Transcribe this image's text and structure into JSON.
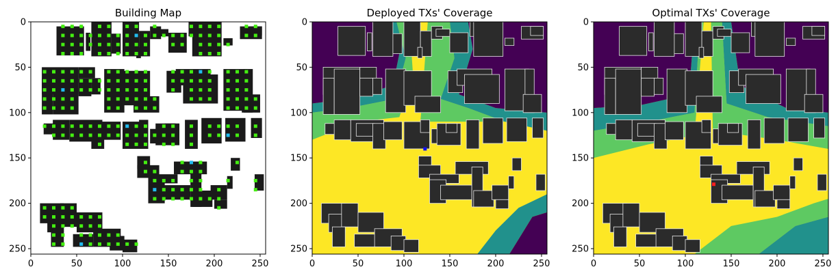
{
  "colors": {
    "viridis_0": "#440154",
    "viridis_1": "#21918c",
    "viridis_2": "#5ec962",
    "viridis_3": "#fde725",
    "building_black": "#1a1a1a",
    "building_gray": "#2b2b2b",
    "building_edge": "#e8e8e8",
    "grid_green": "#44ee11",
    "grid_cyan": "#22bbee",
    "deployed_tx": "#1010ee",
    "optimal_tx": "#ff2020"
  },
  "chart_data": [
    {
      "type": "heatmap",
      "title": "Building Map",
      "xlim": [
        0,
        256
      ],
      "ylim": [
        256,
        0
      ],
      "xticks": [
        "0",
        "50",
        "100",
        "150",
        "200",
        "250"
      ],
      "yticks": [
        "0",
        "50",
        "100",
        "150",
        "200",
        "250"
      ],
      "grid": false
    },
    {
      "type": "heatmap",
      "title": "Deployed TXs' Coverage",
      "xlim": [
        0,
        256
      ],
      "ylim": [
        256,
        0
      ],
      "xticks": [
        "0",
        "50",
        "100",
        "150",
        "200",
        "250"
      ],
      "yticks": [
        "0",
        "50",
        "100",
        "150",
        "200",
        "250"
      ],
      "grid": false,
      "transmitters": [
        {
          "x": 123,
          "y": 140
        }
      ]
    },
    {
      "type": "heatmap",
      "title": "Optimal TXs' Coverage",
      "xlim": [
        0,
        256
      ],
      "ylim": [
        256,
        0
      ],
      "xticks": [
        "0",
        "50",
        "100",
        "150",
        "200",
        "250"
      ],
      "yticks": [
        "0",
        "50",
        "100",
        "150",
        "200",
        "250"
      ],
      "grid": false,
      "transmitters": [
        {
          "x": 131,
          "y": 179
        }
      ]
    }
  ]
}
